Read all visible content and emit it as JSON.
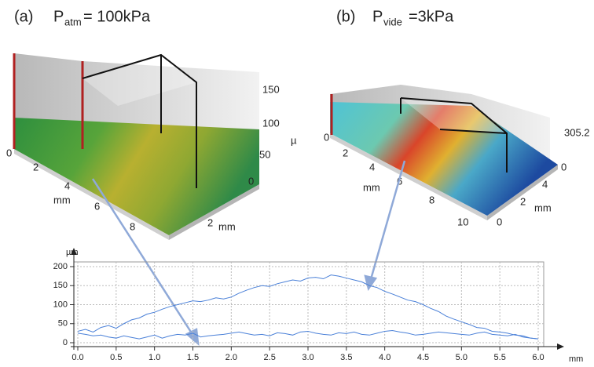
{
  "panel_a": {
    "label": "(a)",
    "symbol": "P",
    "subscript": "atm",
    "value": "= 100kPa",
    "axis_left_ticks": [
      "0",
      "2",
      "4",
      "6",
      "8"
    ],
    "axis_left_unit": "mm",
    "axis_z_ticks": [
      "150",
      "100",
      "50",
      "0"
    ],
    "axis_z_unit": "µ",
    "axis_right_ticks": [
      "2"
    ],
    "axis_right_unit": "mm"
  },
  "panel_b": {
    "label": "(b)",
    "symbol": "P",
    "subscript": "vide",
    "value": "=3kPa",
    "axis_left_ticks": [
      "0",
      "2",
      "4",
      "6",
      "8",
      "10"
    ],
    "axis_left_unit": "mm",
    "axis_z_ticks": [
      "305.2",
      "0"
    ],
    "axis_right_ticks": [
      "4",
      "2",
      "0"
    ],
    "axis_right_unit": "mm"
  },
  "chart_data": {
    "type": "line",
    "y_label": "µm",
    "x_label": "mm",
    "x": [
      0,
      0.1,
      0.2,
      0.3,
      0.4,
      0.5,
      0.6,
      0.7,
      0.8,
      0.9,
      1.0,
      1.1,
      1.2,
      1.3,
      1.4,
      1.5,
      1.6,
      1.7,
      1.8,
      1.9,
      2.0,
      2.1,
      2.2,
      2.3,
      2.4,
      2.5,
      2.6,
      2.7,
      2.8,
      2.9,
      3.0,
      3.1,
      3.2,
      3.3,
      3.4,
      3.5,
      3.6,
      3.7,
      3.8,
      3.9,
      4.0,
      4.1,
      4.2,
      4.3,
      4.4,
      4.5,
      4.6,
      4.7,
      4.8,
      4.9,
      5.0,
      5.1,
      5.2,
      5.3,
      5.4,
      5.5,
      5.6,
      5.7,
      5.8,
      5.9,
      6.0
    ],
    "series": [
      {
        "color": "#4a80d8",
        "values": [
          30,
          35,
          28,
          40,
          45,
          38,
          50,
          60,
          65,
          75,
          80,
          88,
          95,
          100,
          105,
          110,
          108,
          112,
          118,
          115,
          120,
          130,
          138,
          145,
          150,
          148,
          155,
          160,
          165,
          162,
          170,
          172,
          168,
          178,
          175,
          170,
          165,
          160,
          150,
          145,
          135,
          128,
          120,
          112,
          108,
          100,
          90,
          82,
          70,
          62,
          55,
          48,
          40,
          38,
          30,
          28,
          25,
          20,
          18,
          12,
          10
        ]
      },
      {
        "color": "#4a80d8",
        "values": [
          25,
          22,
          18,
          20,
          15,
          12,
          18,
          14,
          10,
          15,
          20,
          12,
          18,
          22,
          20,
          25,
          15,
          18,
          20,
          22,
          25,
          28,
          24,
          20,
          22,
          18,
          26,
          24,
          20,
          28,
          30,
          25,
          22,
          20,
          26,
          24,
          28,
          22,
          20,
          25,
          30,
          32,
          28,
          25,
          20,
          22,
          25,
          28,
          26,
          24,
          22,
          20,
          25,
          28,
          22,
          20,
          18,
          22,
          15,
          12,
          10
        ]
      }
    ],
    "xlim": [
      0,
      6.0
    ],
    "xticks": [
      {
        "value": 0,
        "label": "0.0"
      },
      {
        "value": 0.5,
        "label": "0.5"
      },
      {
        "value": 1,
        "label": "1.0"
      },
      {
        "value": 1.5,
        "label": "1.5"
      },
      {
        "value": 2,
        "label": "2.0"
      },
      {
        "value": 2.5,
        "label": "2.5"
      },
      {
        "value": 3,
        "label": "3.0"
      },
      {
        "value": 3.5,
        "label": "3.5"
      },
      {
        "value": 4,
        "label": "4.0"
      },
      {
        "value": 4.5,
        "label": "4.5"
      },
      {
        "value": 5,
        "label": "5.0"
      },
      {
        "value": 5.5,
        "label": "5.5"
      },
      {
        "value": 6,
        "label": "6.0"
      }
    ],
    "ylim": [
      0,
      200
    ],
    "yticks": [
      0,
      50,
      100,
      150,
      200
    ],
    "grid": true
  }
}
